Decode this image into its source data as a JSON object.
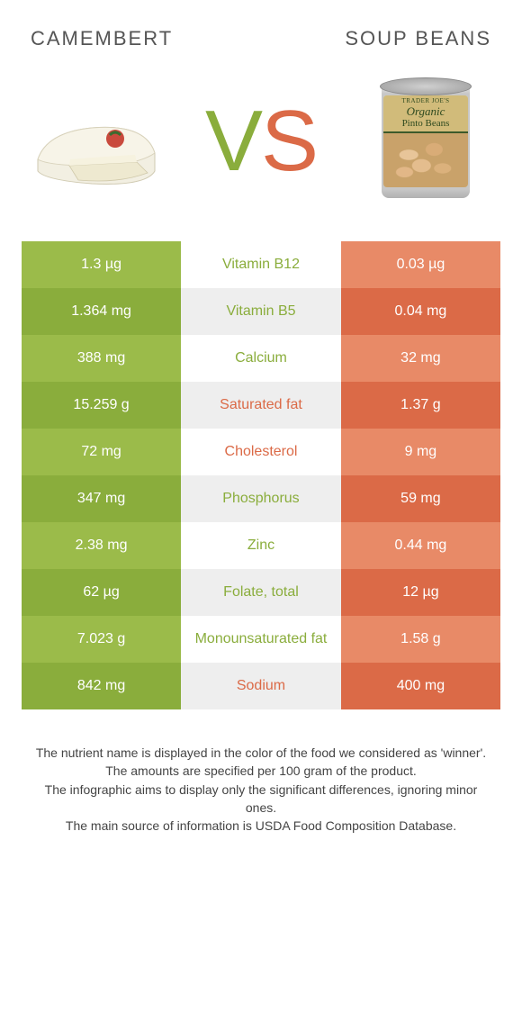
{
  "header": {
    "left_title": "CAMEMBERT",
    "right_title": "SOUP BEANS",
    "vs_v": "V",
    "vs_s": "S"
  },
  "colors": {
    "green": "#8aad3c",
    "orange": "#db6a47",
    "green_rows": [
      "#9bbb4a",
      "#8aad3c"
    ],
    "orange_rows": [
      "#e88a67",
      "#db6a47"
    ],
    "mid_rows": [
      "#ffffff",
      "#eeeeee"
    ]
  },
  "can_label": {
    "line1": "TRADER JOE'S",
    "line2": "Organic",
    "line3": "Pinto Beans"
  },
  "rows": [
    {
      "left": "1.3 µg",
      "mid": "Vitamin B12",
      "right": "0.03 µg",
      "winner": "left"
    },
    {
      "left": "1.364 mg",
      "mid": "Vitamin B5",
      "right": "0.04 mg",
      "winner": "left"
    },
    {
      "left": "388 mg",
      "mid": "Calcium",
      "right": "32 mg",
      "winner": "left"
    },
    {
      "left": "15.259 g",
      "mid": "Saturated fat",
      "right": "1.37 g",
      "winner": "right"
    },
    {
      "left": "72 mg",
      "mid": "Cholesterol",
      "right": "9 mg",
      "winner": "right"
    },
    {
      "left": "347 mg",
      "mid": "Phosphorus",
      "right": "59 mg",
      "winner": "left"
    },
    {
      "left": "2.38 mg",
      "mid": "Zinc",
      "right": "0.44 mg",
      "winner": "left"
    },
    {
      "left": "62 µg",
      "mid": "Folate, total",
      "right": "12 µg",
      "winner": "left"
    },
    {
      "left": "7.023 g",
      "mid": "Monounsaturated fat",
      "right": "1.58 g",
      "winner": "left"
    },
    {
      "left": "842 mg",
      "mid": "Sodium",
      "right": "400 mg",
      "winner": "right"
    }
  ],
  "footer": {
    "line1": "The nutrient name is displayed in the color of the food we considered as 'winner'.",
    "line2": "The amounts are specified per 100 gram of the product.",
    "line3": "The infographic aims to display only the significant differences, ignoring minor ones.",
    "line4": "The main source of information is USDA Food Composition Database."
  }
}
